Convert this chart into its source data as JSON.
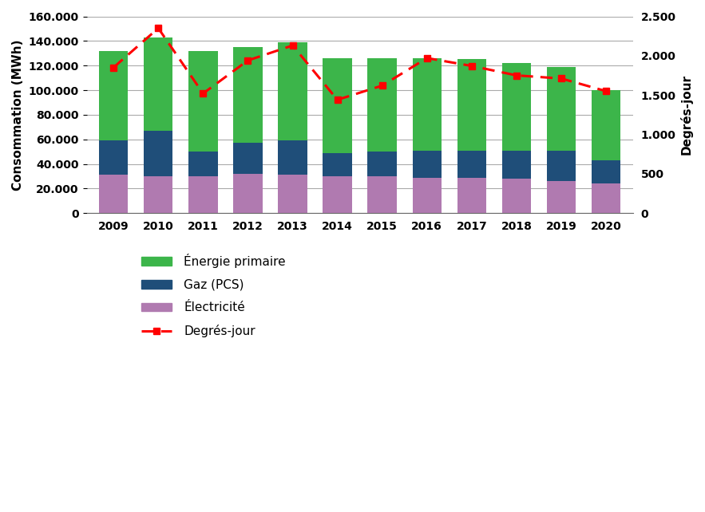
{
  "years": [
    2009,
    2010,
    2011,
    2012,
    2013,
    2014,
    2015,
    2016,
    2017,
    2018,
    2019,
    2020
  ],
  "energie_primaire": [
    132000,
    143000,
    132000,
    135000,
    139000,
    126000,
    126000,
    126000,
    125000,
    122000,
    119000,
    100000
  ],
  "gaz_pcs": [
    59000,
    67000,
    50000,
    57000,
    59000,
    49000,
    50000,
    51000,
    51000,
    51000,
    51000,
    43000
  ],
  "electricite": [
    31000,
    30000,
    30000,
    32000,
    31000,
    30000,
    30000,
    29000,
    29000,
    28000,
    26000,
    24000
  ],
  "degres_jour": [
    1850,
    2350,
    1520,
    1940,
    2130,
    1440,
    1620,
    1970,
    1870,
    1750,
    1710,
    1550
  ],
  "color_energie": "#3CB54A",
  "color_gaz": "#1F4E79",
  "color_elec": "#B07AB0",
  "color_dj": "#FF0000",
  "ylabel_left": "Consommation (MWh)",
  "ylabel_right": "Degrés-jour",
  "ylim_left": [
    0,
    160000
  ],
  "ylim_right": [
    0,
    2500
  ],
  "yticks_left": [
    0,
    20000,
    40000,
    60000,
    80000,
    100000,
    120000,
    140000,
    160000
  ],
  "yticks_right": [
    0,
    500,
    1000,
    1500,
    2000,
    2500
  ],
  "legend_energie": "Énergie primaire",
  "legend_gaz": "Gaz (PCS)",
  "legend_elec": "Électricité",
  "legend_dj": "Degrés-jour",
  "background_color": "#FFFFFF",
  "grid_color": "#AAAAAA",
  "bar_width": 0.65
}
